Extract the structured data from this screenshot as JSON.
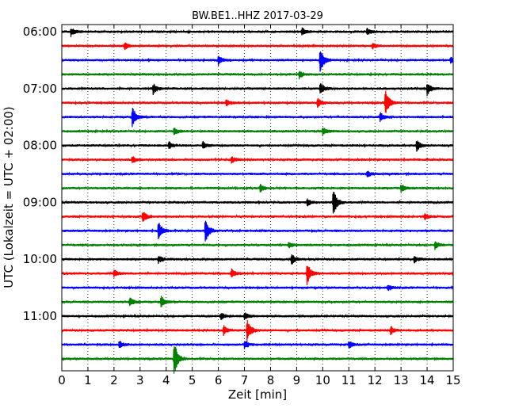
{
  "chart_data": {
    "type": "line",
    "title": "BW.BE1..HHZ 2017-03-29",
    "xlabel": "Zeit  [min]",
    "ylabel": "UTC (Lokalzeit = UTC + 02:00)",
    "xlim": [
      0,
      15
    ],
    "x_ticks": [
      "0",
      "1",
      "2",
      "3",
      "4",
      "5",
      "6",
      "7",
      "8",
      "9",
      "10",
      "11",
      "12",
      "13",
      "14",
      "15"
    ],
    "y_tick_labels": [
      "06:00",
      "07:00",
      "08:00",
      "09:00",
      "10:00",
      "11:00"
    ],
    "grid": "vertical dotted lines at each minute",
    "trace_interval_min": 15,
    "trace_colors": [
      "#000000",
      "#ff0000",
      "#0000ff",
      "#008000"
    ],
    "traces": [
      {
        "start": "06:00",
        "events": [
          {
            "t": 0.35,
            "amp": 0.35
          },
          {
            "t": 9.2,
            "amp": 0.35
          },
          {
            "t": 11.7,
            "amp": 0.3
          }
        ]
      },
      {
        "start": "06:15",
        "events": [
          {
            "t": 2.4,
            "amp": 0.3
          },
          {
            "t": 11.9,
            "amp": 0.25
          }
        ]
      },
      {
        "start": "06:30",
        "events": [
          {
            "t": 6.0,
            "amp": 0.35
          },
          {
            "t": 9.9,
            "amp": 1.0
          },
          {
            "t": 14.9,
            "amp": 0.3
          }
        ]
      },
      {
        "start": "06:45",
        "events": [
          {
            "t": 9.1,
            "amp": 0.3
          }
        ]
      },
      {
        "start": "07:00",
        "events": [
          {
            "t": 3.5,
            "amp": 0.45
          },
          {
            "t": 9.9,
            "amp": 0.5
          },
          {
            "t": 14.0,
            "amp": 0.55
          }
        ]
      },
      {
        "start": "07:15",
        "events": [
          {
            "t": 6.3,
            "amp": 0.3
          },
          {
            "t": 9.8,
            "amp": 0.4
          },
          {
            "t": 12.4,
            "amp": 1.1
          }
        ]
      },
      {
        "start": "07:30",
        "events": [
          {
            "t": 2.7,
            "amp": 0.85
          },
          {
            "t": 12.2,
            "amp": 0.35
          }
        ]
      },
      {
        "start": "07:45",
        "events": [
          {
            "t": 4.3,
            "amp": 0.3
          },
          {
            "t": 10.0,
            "amp": 0.3
          }
        ]
      },
      {
        "start": "08:00",
        "events": [
          {
            "t": 4.1,
            "amp": 0.3
          },
          {
            "t": 5.4,
            "amp": 0.3
          },
          {
            "t": 13.6,
            "amp": 0.45
          }
        ]
      },
      {
        "start": "08:15",
        "events": [
          {
            "t": 2.7,
            "amp": 0.25
          },
          {
            "t": 6.5,
            "amp": 0.25
          }
        ]
      },
      {
        "start": "08:30",
        "events": [
          {
            "t": 11.7,
            "amp": 0.25
          }
        ]
      },
      {
        "start": "08:45",
        "events": [
          {
            "t": 7.6,
            "amp": 0.3
          },
          {
            "t": 13.0,
            "amp": 0.3
          }
        ]
      },
      {
        "start": "09:00",
        "events": [
          {
            "t": 10.4,
            "amp": 1.2
          },
          {
            "t": 9.4,
            "amp": 0.3
          }
        ]
      },
      {
        "start": "09:15",
        "events": [
          {
            "t": 3.1,
            "amp": 0.5
          },
          {
            "t": 13.9,
            "amp": 0.25
          }
        ]
      },
      {
        "start": "09:30",
        "events": [
          {
            "t": 3.7,
            "amp": 0.75
          },
          {
            "t": 5.5,
            "amp": 1.0
          }
        ]
      },
      {
        "start": "09:45",
        "events": [
          {
            "t": 8.7,
            "amp": 0.25
          },
          {
            "t": 14.3,
            "amp": 0.3
          }
        ]
      },
      {
        "start": "10:00",
        "events": [
          {
            "t": 3.7,
            "amp": 0.3
          },
          {
            "t": 8.8,
            "amp": 0.45
          },
          {
            "t": 13.5,
            "amp": 0.3
          }
        ]
      },
      {
        "start": "10:15",
        "events": [
          {
            "t": 2.0,
            "amp": 0.3
          },
          {
            "t": 6.5,
            "amp": 0.35
          },
          {
            "t": 9.4,
            "amp": 0.9
          }
        ]
      },
      {
        "start": "10:30",
        "events": [
          {
            "t": 12.5,
            "amp": 0.25
          }
        ]
      },
      {
        "start": "10:45",
        "events": [
          {
            "t": 2.6,
            "amp": 0.45
          },
          {
            "t": 3.8,
            "amp": 0.5
          }
        ]
      },
      {
        "start": "11:00",
        "events": [
          {
            "t": 6.1,
            "amp": 0.3
          },
          {
            "t": 7.0,
            "amp": 0.3
          }
        ]
      },
      {
        "start": "11:15",
        "events": [
          {
            "t": 6.2,
            "amp": 0.4
          },
          {
            "t": 7.1,
            "amp": 0.95
          },
          {
            "t": 12.6,
            "amp": 0.35
          }
        ]
      },
      {
        "start": "11:30",
        "events": [
          {
            "t": 2.2,
            "amp": 0.3
          },
          {
            "t": 7.0,
            "amp": 0.35
          },
          {
            "t": 11.0,
            "amp": 0.3
          }
        ]
      },
      {
        "start": "11:45",
        "events": [
          {
            "t": 4.3,
            "amp": 1.5
          }
        ]
      }
    ]
  }
}
